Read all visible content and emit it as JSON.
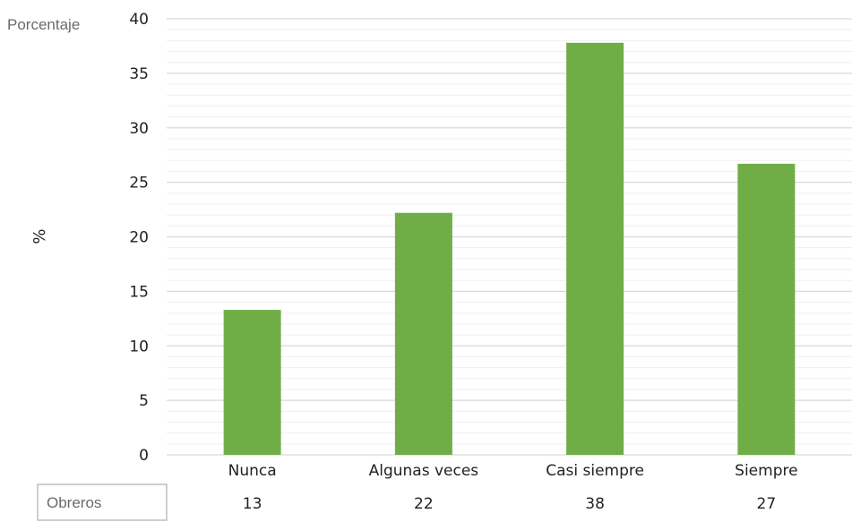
{
  "chart_data": {
    "type": "bar",
    "title": "",
    "corner_label": "Porcentaje",
    "ylabel": "%",
    "xlabel": "",
    "categories": [
      "Nunca",
      "Algunas veces",
      "Casi siempre",
      "Siempre"
    ],
    "series": [
      {
        "values": [
          13.3,
          22.2,
          37.8,
          26.7
        ]
      }
    ],
    "ylim": [
      0,
      40
    ],
    "yticks": [
      0,
      5,
      10,
      15,
      20,
      25,
      30,
      35,
      40
    ],
    "minor_gridlines_per_major": 5,
    "grid": true,
    "legend": "none",
    "bar_color": "#70ad47",
    "major_grid_color": "#d9d9d9",
    "minor_grid_color": "#efefef",
    "table": {
      "row_label": "Obreros",
      "values": [
        "13",
        "22",
        "38",
        "27"
      ]
    }
  }
}
